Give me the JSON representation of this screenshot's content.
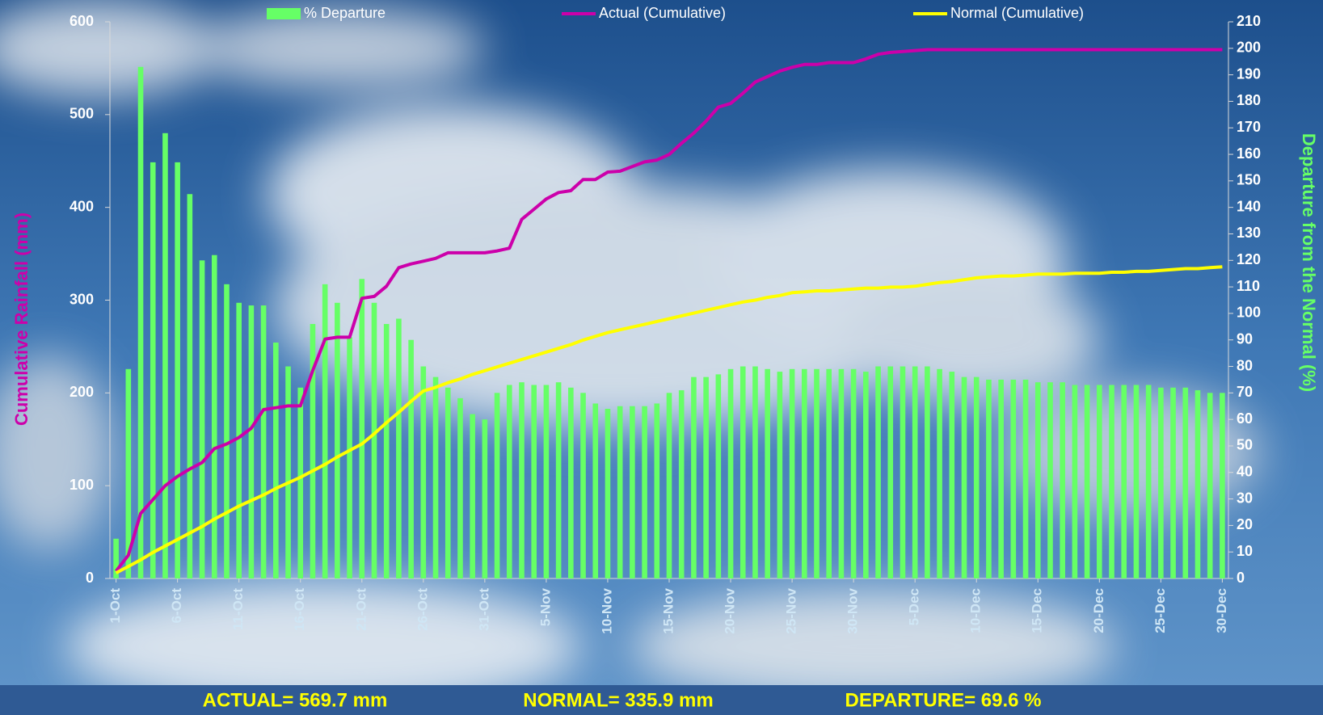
{
  "chart_data": {
    "type": "combo",
    "y_label": "Cumulative Rainfall (mm)",
    "y2_label": "Departure from the Normal (%)",
    "categories": [
      "1-Oct",
      null,
      null,
      null,
      null,
      "6-Oct",
      null,
      null,
      null,
      null,
      "11-Oct",
      null,
      null,
      null,
      null,
      "16-Oct",
      null,
      null,
      null,
      null,
      "21-Oct",
      null,
      null,
      null,
      null,
      "26-Oct",
      null,
      null,
      null,
      null,
      "31-Oct",
      null,
      null,
      null,
      null,
      "5-Nov",
      null,
      null,
      null,
      null,
      "10-Nov",
      null,
      null,
      null,
      null,
      "15-Nov",
      null,
      null,
      null,
      null,
      "20-Nov",
      null,
      null,
      null,
      null,
      "25-Nov",
      null,
      null,
      null,
      null,
      "30-Nov",
      null,
      null,
      null,
      null,
      "5-Dec",
      null,
      null,
      null,
      null,
      "10-Dec",
      null,
      null,
      null,
      null,
      "15-Dec",
      null,
      null,
      null,
      null,
      "20-Dec",
      null,
      null,
      null,
      null,
      "25-Dec",
      null,
      null,
      null,
      null,
      "30-Dec"
    ],
    "series": [
      {
        "name": "% Departure",
        "type": "bar",
        "axis": "y2",
        "color": "#66ff66",
        "values": [
          15,
          79,
          193,
          157,
          168,
          157,
          145,
          120,
          122,
          111,
          104,
          103,
          103,
          89,
          80,
          72,
          96,
          111,
          104,
          91,
          113,
          104,
          96,
          98,
          90,
          80,
          76,
          72,
          68,
          62,
          60,
          70,
          73,
          74,
          73,
          73,
          74,
          72,
          70,
          66,
          64,
          65,
          65,
          65,
          66,
          70,
          71,
          76,
          76,
          77,
          79,
          80,
          80,
          79,
          78,
          79,
          79,
          79,
          79,
          79,
          79,
          78,
          80,
          80,
          80,
          80,
          80,
          79,
          78,
          76,
          76,
          75,
          75,
          75,
          75,
          74,
          74,
          74,
          73,
          73,
          73,
          73,
          73,
          73,
          73,
          72,
          72,
          72,
          71,
          70,
          70
        ]
      },
      {
        "name": "Actual (Cumulative)",
        "type": "line",
        "axis": "y",
        "color": "#cc00aa",
        "values": [
          8,
          25,
          70,
          85,
          100,
          110,
          118,
          125,
          140,
          145,
          152,
          162,
          182,
          184,
          186,
          186,
          224,
          258,
          260,
          260,
          302,
          304,
          315,
          335,
          339,
          342,
          345,
          351,
          351,
          351,
          351,
          353,
          356,
          387,
          398,
          409,
          416,
          418,
          430,
          430,
          438,
          439,
          444,
          449,
          451,
          457,
          469,
          480,
          493,
          508,
          512,
          523,
          535,
          541,
          547,
          551,
          554,
          554,
          556,
          556,
          556,
          560,
          565,
          567,
          568,
          569,
          570,
          570,
          570,
          570,
          570,
          570,
          570,
          570,
          570,
          570,
          570,
          570,
          570,
          570,
          570,
          570,
          570,
          570,
          570,
          570,
          570,
          570,
          570,
          570,
          570
        ]
      },
      {
        "name": "Normal (Cumulative)",
        "type": "line",
        "axis": "y",
        "color": "#ffff00",
        "values": [
          6,
          13,
          20,
          28,
          35,
          42,
          49,
          56,
          64,
          71,
          78,
          84,
          90,
          97,
          103,
          109,
          116,
          123,
          131,
          138,
          145,
          156,
          168,
          179,
          191,
          202,
          206,
          211,
          215,
          220,
          224,
          228,
          232,
          236,
          240,
          244,
          248,
          252,
          257,
          261,
          265,
          268,
          271,
          274,
          277,
          280,
          283,
          286,
          289,
          292,
          295,
          298,
          300,
          303,
          305,
          308,
          309,
          310,
          310,
          311,
          312,
          313,
          313,
          314,
          314,
          315,
          317,
          319,
          320,
          322,
          324,
          325,
          326,
          326,
          327,
          328,
          328,
          328,
          329,
          329,
          329,
          330,
          330,
          331,
          331,
          332,
          333,
          334,
          334,
          335,
          336
        ]
      }
    ],
    "ylim": [
      0,
      600
    ],
    "yticks": [
      0,
      100,
      200,
      300,
      400,
      500,
      600
    ],
    "y2lim": [
      0,
      210
    ],
    "y2ticks": [
      0,
      10,
      20,
      30,
      40,
      50,
      60,
      70,
      80,
      90,
      100,
      110,
      120,
      130,
      140,
      150,
      160,
      170,
      180,
      190,
      200,
      210
    ],
    "legend": "top",
    "annotations": [
      "ACTUAL= 569.7 mm",
      "NORMAL= 335.9 mm",
      "DEPARTURE= 69.6 %"
    ]
  }
}
